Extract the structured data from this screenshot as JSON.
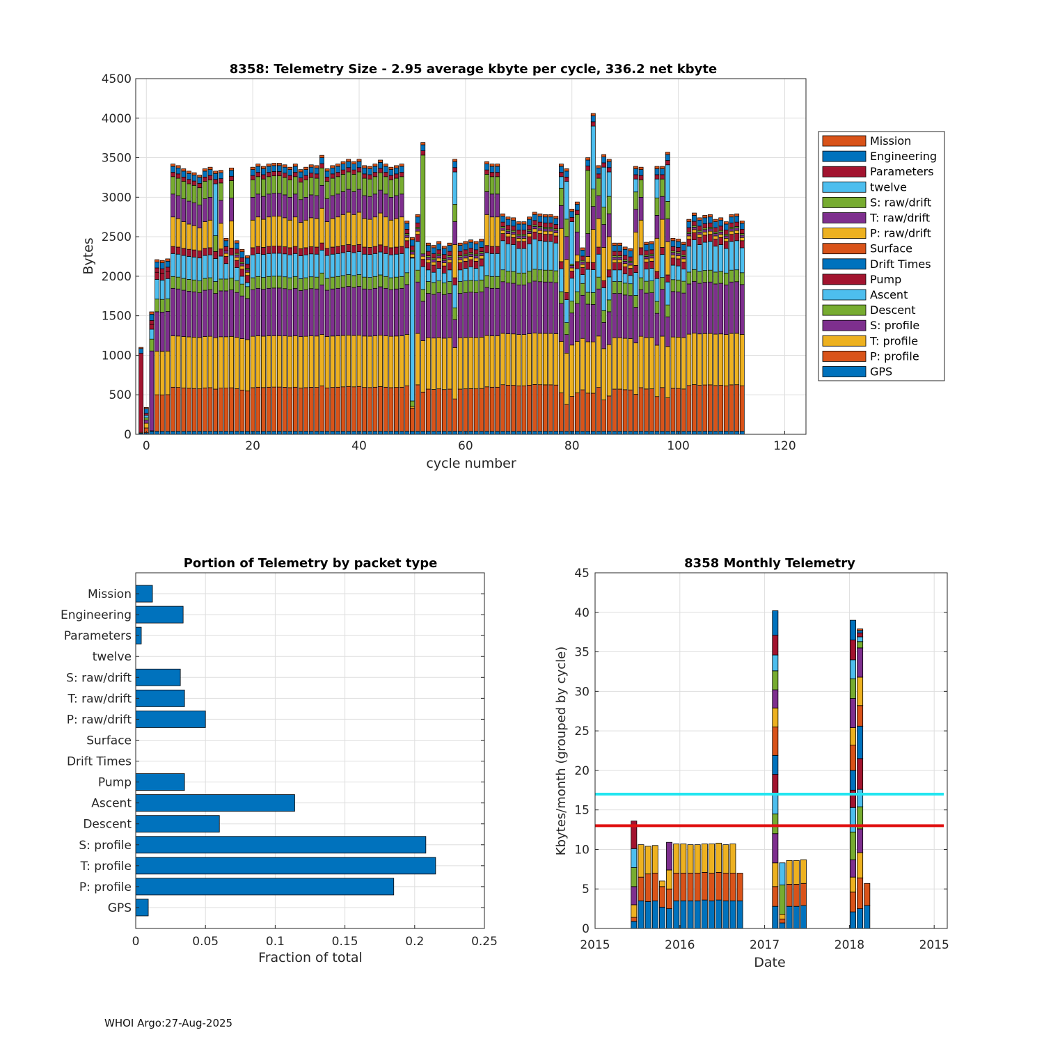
{
  "colors": {
    "Mission": "#D95319",
    "Engineering": "#0072BD",
    "Parameters": "#A2142F",
    "twelve": "#4DBEEE",
    "S: raw/drift": "#77AC30",
    "T: raw/drift": "#7E2F8E",
    "P: raw/drift": "#EDB120",
    "Surface": "#D95319",
    "Drift Times": "#0072BD",
    "Pump": "#A2142F",
    "Ascent": "#4DBEEE",
    "Descent": "#77AC30",
    "S: profile": "#7E2F8E",
    "T: profile": "#EDB120",
    "P: profile": "#D95319",
    "GPS": "#0072BD",
    "bar": "#0072BD",
    "cyan_line": "#22E5F0",
    "red_line": "#E01010"
  },
  "footer": "WHOI Argo:27-Aug-2025",
  "chart_data": [
    {
      "id": "top",
      "type": "bar",
      "stacked": true,
      "title": "8358: Telemetry Size - 2.95 average kbyte per cycle,  336.2 net kbyte",
      "xlabel": "cycle number",
      "ylabel": "Bytes",
      "xlim": [
        -2,
        124
      ],
      "ylim": [
        0,
        4500
      ],
      "xticks": [
        0,
        20,
        40,
        60,
        80,
        100,
        120
      ],
      "yticks": [
        0,
        500,
        1000,
        1500,
        2000,
        2500,
        3000,
        3500,
        4000,
        4500
      ],
      "grid": true,
      "legend_position": "right",
      "legend": [
        "Mission",
        "Engineering",
        "Parameters",
        "twelve",
        "S: raw/drift",
        "T: raw/drift",
        "P: raw/drift",
        "Surface",
        "Drift Times",
        "Pump",
        "Ascent",
        "Descent",
        "S: profile",
        "T: profile",
        "P: profile",
        "GPS"
      ],
      "series_order": [
        "GPS",
        "P: profile",
        "T: profile",
        "S: profile",
        "Descent",
        "Ascent",
        "Pump",
        "Drift Times",
        "Surface",
        "P: raw/drift",
        "T: raw/drift",
        "S: raw/drift",
        "twelve",
        "Parameters",
        "Engineering",
        "Mission"
      ],
      "cycle_range": [
        -1,
        112
      ],
      "totals_approx": {
        "-1": 1100,
        "0": 360,
        "1": 1550,
        "2": 2210,
        "3": 2200,
        "4": 2220,
        "5": 3420,
        "6": 3400,
        "7": 3360,
        "8": 3330,
        "9": 3310,
        "10": 3280,
        "11": 3360,
        "12": 3380,
        "13": 3330,
        "14": 3340,
        "15": 2480,
        "16": 3370,
        "17": 2450,
        "18": 2340,
        "19": 2260,
        "20": 3380,
        "21": 3420,
        "22": 3390,
        "23": 3420,
        "24": 3430,
        "25": 3430,
        "26": 3410,
        "27": 3380,
        "28": 3420,
        "29": 3350,
        "30": 3380,
        "31": 3410,
        "32": 3400,
        "33": 3530,
        "34": 3360,
        "35": 3400,
        "36": 3420,
        "37": 3450,
        "38": 3480,
        "39": 3450,
        "40": 3480,
        "41": 3400,
        "42": 3390,
        "43": 3420,
        "44": 3470,
        "45": 3420,
        "46": 3380,
        "47": 3400,
        "48": 3420,
        "49": 2700,
        "50": 2450,
        "51": 2780,
        "52": 3600,
        "53": 2420,
        "54": 2390,
        "55": 2440,
        "56": 2380,
        "57": 2420,
        "58": 3480,
        "59": 2420,
        "60": 2440,
        "61": 2460,
        "62": 2440,
        "63": 2470,
        "64": 3450,
        "65": 3420,
        "66": 3420,
        "67": 2790,
        "68": 2750,
        "69": 2740,
        "70": 2690,
        "71": 2690,
        "72": 2750,
        "73": 2810,
        "74": 2790,
        "75": 2780,
        "76": 2780,
        "77": 2760,
        "78": 3420,
        "79": 3360,
        "80": 2850,
        "81": 2940,
        "82": 2360,
        "83": 3500,
        "84": 4060,
        "85": 3400,
        "86": 3540,
        "87": 3480,
        "88": 2420,
        "89": 2420,
        "90": 2370,
        "91": 2350,
        "92": 3390,
        "93": 3380,
        "94": 2430,
        "95": 2440,
        "96": 3390,
        "97": 3390,
        "98": 3570,
        "99": 2480,
        "100": 2470,
        "101": 2430,
        "102": 2720,
        "103": 2800,
        "104": 2740,
        "105": 2770,
        "106": 2780,
        "107": 2720,
        "108": 2740,
        "109": 2690,
        "110": 2780,
        "111": 2790,
        "112": 2700
      }
    },
    {
      "id": "bottom_left",
      "type": "bar",
      "orientation": "horizontal",
      "title": "Portion of Telemetry by packet type",
      "xlabel": "Fraction of total",
      "xlim": [
        0,
        0.25
      ],
      "xticks": [
        0,
        0.05,
        0.1,
        0.15,
        0.2,
        0.25
      ],
      "xtick_labels": [
        "0",
        "0.05",
        "0.1",
        "0.15",
        "0.2",
        "0.25"
      ],
      "categories": [
        "Mission",
        "Engineering",
        "Parameters",
        "twelve",
        "S: raw/drift",
        "T: raw/drift",
        "P: raw/drift",
        "Surface",
        "Drift Times",
        "Pump",
        "Ascent",
        "Descent",
        "S: profile",
        "T: profile",
        "P: profile",
        "GPS"
      ],
      "values": [
        0.012,
        0.034,
        0.004,
        0.0,
        0.032,
        0.035,
        0.05,
        0.0,
        0.0,
        0.035,
        0.114,
        0.06,
        0.208,
        0.215,
        0.185,
        0.009
      ],
      "grid": true
    },
    {
      "id": "bottom_right",
      "type": "bar",
      "stacked": true,
      "title": "8358 Monthly Telemetry",
      "xlabel": "Date",
      "ylabel": "Kbytes/month (grouped by cycle)",
      "ylim": [
        0,
        45
      ],
      "yticks": [
        0,
        5,
        10,
        15,
        20,
        25,
        30,
        35,
        40,
        45
      ],
      "xtick_labels": [
        "2015",
        "2016",
        "2017",
        "2018",
        "2015"
      ],
      "hlines": [
        {
          "y": 17,
          "color": "cyan"
        },
        {
          "y": 13,
          "color": "red"
        }
      ],
      "grid": true,
      "month_bars": [
        {
          "m": 5.5,
          "segs": [
            [
              0.9,
              "#0072BD"
            ],
            [
              0.5,
              "#D95319"
            ],
            [
              1.6,
              "#EDB120"
            ],
            [
              2.3,
              "#7E2F8E"
            ],
            [
              2.4,
              "#77AC30"
            ],
            [
              2.4,
              "#4DBEEE"
            ],
            [
              3.5,
              "#A2142F"
            ]
          ]
        },
        {
          "m": 6.5,
          "segs": [
            [
              3.5,
              "#0072BD"
            ],
            [
              3.0,
              "#D95319"
            ],
            [
              4.1,
              "#EDB120"
            ]
          ]
        },
        {
          "m": 7.5,
          "segs": [
            [
              3.4,
              "#0072BD"
            ],
            [
              3.5,
              "#D95319"
            ],
            [
              3.5,
              "#EDB120"
            ]
          ]
        },
        {
          "m": 8.5,
          "segs": [
            [
              3.5,
              "#0072BD"
            ],
            [
              3.5,
              "#D95319"
            ],
            [
              3.5,
              "#EDB120"
            ]
          ]
        },
        {
          "m": 9.5,
          "segs": [
            [
              2.7,
              "#0072BD"
            ],
            [
              2.6,
              "#D95319"
            ],
            [
              0.7,
              "#EDB120"
            ]
          ]
        },
        {
          "m": 10.5,
          "segs": [
            [
              2.5,
              "#0072BD"
            ],
            [
              2.5,
              "#D95319"
            ],
            [
              2.4,
              "#EDB120"
            ],
            [
              3.5,
              "#7E2F8E"
            ]
          ]
        },
        {
          "m": 11.5,
          "segs": [
            [
              3.5,
              "#0072BD"
            ],
            [
              3.5,
              "#D95319"
            ],
            [
              3.7,
              "#EDB120"
            ]
          ]
        },
        {
          "m": 12.5,
          "segs": [
            [
              3.5,
              "#0072BD"
            ],
            [
              3.5,
              "#D95319"
            ],
            [
              3.7,
              "#EDB120"
            ]
          ]
        },
        {
          "m": 13.5,
          "segs": [
            [
              3.5,
              "#0072BD"
            ],
            [
              3.5,
              "#D95319"
            ],
            [
              3.6,
              "#EDB120"
            ]
          ]
        },
        {
          "m": 14.5,
          "segs": [
            [
              3.5,
              "#0072BD"
            ],
            [
              3.5,
              "#D95319"
            ],
            [
              3.6,
              "#EDB120"
            ]
          ]
        },
        {
          "m": 15.5,
          "segs": [
            [
              3.6,
              "#0072BD"
            ],
            [
              3.5,
              "#D95319"
            ],
            [
              3.6,
              "#EDB120"
            ]
          ]
        },
        {
          "m": 16.5,
          "segs": [
            [
              3.5,
              "#0072BD"
            ],
            [
              3.5,
              "#D95319"
            ],
            [
              3.7,
              "#EDB120"
            ]
          ]
        },
        {
          "m": 17.5,
          "segs": [
            [
              3.6,
              "#0072BD"
            ],
            [
              3.5,
              "#D95319"
            ],
            [
              3.7,
              "#EDB120"
            ]
          ]
        },
        {
          "m": 18.5,
          "segs": [
            [
              3.5,
              "#0072BD"
            ],
            [
              3.5,
              "#D95319"
            ],
            [
              3.6,
              "#EDB120"
            ]
          ]
        },
        {
          "m": 19.5,
          "segs": [
            [
              3.5,
              "#0072BD"
            ],
            [
              3.5,
              "#D95319"
            ],
            [
              3.7,
              "#EDB120"
            ]
          ]
        },
        {
          "m": 20.5,
          "segs": [
            [
              3.5,
              "#0072BD"
            ],
            [
              3.5,
              "#D95319"
            ]
          ]
        },
        {
          "m": 25.5,
          "segs": [
            [
              2.8,
              "#0072BD"
            ],
            [
              2.5,
              "#D95319"
            ],
            [
              3.0,
              "#EDB120"
            ],
            [
              3.7,
              "#7E2F8E"
            ],
            [
              2.5,
              "#77AC30"
            ],
            [
              2.5,
              "#4DBEEE"
            ],
            [
              2.5,
              "#A2142F"
            ],
            [
              2.4,
              "#0072BD"
            ],
            [
              3.6,
              "#D95319"
            ],
            [
              2.4,
              "#EDB120"
            ],
            [
              2.3,
              "#7E2F8E"
            ],
            [
              2.4,
              "#77AC30"
            ],
            [
              2.0,
              "#4DBEEE"
            ],
            [
              2.5,
              "#A2142F"
            ],
            [
              3.1,
              "#0072BD"
            ]
          ]
        },
        {
          "m": 26.5,
          "segs": [
            [
              0.7,
              "#0072BD"
            ],
            [
              0.5,
              "#D95319"
            ],
            [
              0.6,
              "#EDB120"
            ],
            [
              3.7,
              "#77AC30"
            ],
            [
              2.8,
              "#4DBEEE"
            ]
          ]
        },
        {
          "m": 27.5,
          "segs": [
            [
              2.8,
              "#0072BD"
            ],
            [
              2.8,
              "#D95319"
            ],
            [
              3.0,
              "#EDB120"
            ]
          ]
        },
        {
          "m": 28.5,
          "segs": [
            [
              2.8,
              "#0072BD"
            ],
            [
              2.8,
              "#D95319"
            ],
            [
              3.0,
              "#EDB120"
            ]
          ]
        },
        {
          "m": 29.5,
          "segs": [
            [
              2.9,
              "#0072BD"
            ],
            [
              2.8,
              "#D95319"
            ],
            [
              3.0,
              "#EDB120"
            ]
          ]
        },
        {
          "m": 36.5,
          "segs": [
            [
              2.1,
              "#0072BD"
            ],
            [
              2.5,
              "#D95319"
            ],
            [
              1.9,
              "#EDB120"
            ],
            [
              2.2,
              "#7E2F8E"
            ],
            [
              3.5,
              "#77AC30"
            ],
            [
              3.1,
              "#4DBEEE"
            ],
            [
              2.2,
              "#A2142F"
            ],
            [
              2.5,
              "#0072BD"
            ],
            [
              3.2,
              "#D95319"
            ],
            [
              2.2,
              "#EDB120"
            ],
            [
              3.7,
              "#7E2F8E"
            ],
            [
              2.5,
              "#77AC30"
            ],
            [
              2.4,
              "#4DBEEE"
            ],
            [
              2.5,
              "#A2142F"
            ],
            [
              2.5,
              "#0072BD"
            ]
          ]
        },
        {
          "m": 37.5,
          "segs": [
            [
              2.5,
              "#0072BD"
            ],
            [
              3.9,
              "#D95319"
            ],
            [
              3.2,
              "#EDB120"
            ],
            [
              3.0,
              "#7E2F8E"
            ],
            [
              2.8,
              "#77AC30"
            ],
            [
              2.2,
              "#4DBEEE"
            ],
            [
              3.9,
              "#A2142F"
            ],
            [
              4.1,
              "#0072BD"
            ],
            [
              2.6,
              "#D95319"
            ],
            [
              3.6,
              "#EDB120"
            ],
            [
              3.7,
              "#7E2F8E"
            ],
            [
              0.8,
              "#77AC30"
            ],
            [
              0.6,
              "#4DBEEE"
            ],
            [
              0.5,
              "#A2142F"
            ],
            [
              0.3,
              "#0072BD"
            ],
            [
              0.2,
              "#D95319"
            ]
          ]
        },
        {
          "m": 38.5,
          "segs": [
            [
              2.9,
              "#0072BD"
            ],
            [
              2.8,
              "#D95319"
            ]
          ]
        }
      ]
    }
  ]
}
